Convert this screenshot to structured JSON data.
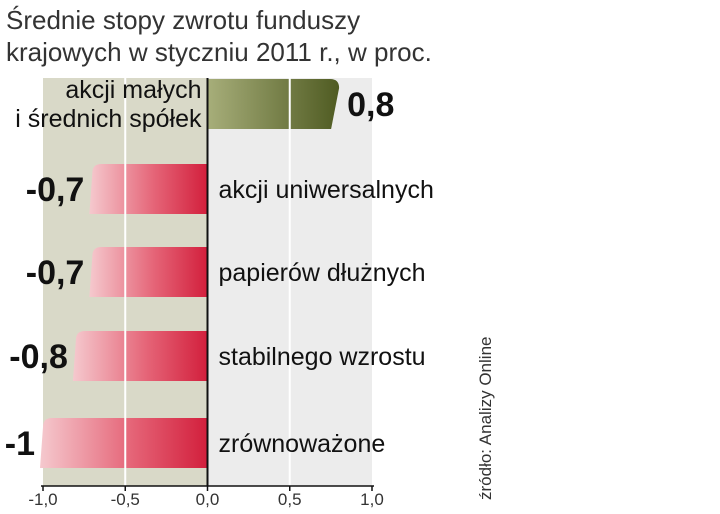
{
  "title_lines": [
    "Średnie stopy zwrotu funduszy",
    "krajowych w styczniu 2011 r., w proc."
  ],
  "source": "źródło: Analizy Online",
  "colors": {
    "negative_bar": "#d21f3c",
    "negative_bar_light": "#f5c9ce",
    "positive_bar": "#4f5b22",
    "positive_bar_light": "#a7ae7a",
    "negative_zone_bg": "#d9d9c8",
    "positive_zone_bg": "#ececec"
  },
  "chart_data": {
    "type": "bar",
    "orientation": "horizontal",
    "categories": [
      "akcji małych i średnich spółek",
      "akcji uniwersalnych",
      "papierów dłużnych",
      "stabilnego wzrostu",
      "zrównoważone"
    ],
    "category_lines": [
      [
        "akcji małych",
        "i średnich spółek"
      ],
      [
        "akcji uniwersalnych"
      ],
      [
        "papierów dłużnych"
      ],
      [
        "stabilnego wzrostu"
      ],
      [
        "zrównoważone"
      ]
    ],
    "values": [
      0.8,
      -0.7,
      -0.7,
      -0.8,
      -1
    ],
    "value_labels": [
      "0,8",
      "-0,7",
      "-0,7",
      "-0,8",
      "-1"
    ],
    "xlim": [
      -1.0,
      1.0
    ],
    "xticks": [
      -1.0,
      -0.5,
      0.0,
      0.5,
      1.0
    ],
    "xtick_labels": [
      "-1,0",
      "-0,5",
      "0,0",
      "0,5",
      "1,0"
    ],
    "grid": true
  }
}
